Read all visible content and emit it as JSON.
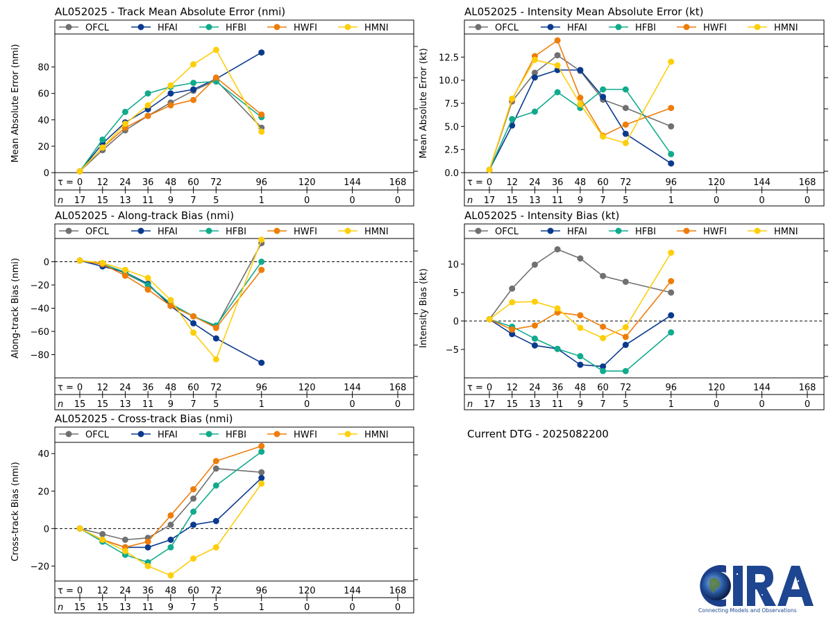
{
  "colors": {
    "OFCL": "#707070",
    "HFAI": "#0a3a8e",
    "HFBI": "#10ab8c",
    "HWFI": "#ee7d0a",
    "HMNI": "#fdce0c"
  },
  "tau_label": "τ =",
  "n_label": "n",
  "current_dtg": "Current DTG - 2025082200",
  "logo": {
    "letters": "CIRA",
    "tagline": "Connecting Models and Observations"
  },
  "chart_data": [
    {
      "id": "track-mae",
      "type": "line",
      "title": "AL052025 - Track Mean Absolute Error (nmi)",
      "ylabel": "Mean Absolute Error (nmi)",
      "ylim": [
        0,
        105
      ],
      "yticks": [
        0,
        20,
        40,
        60,
        80
      ],
      "ytick_labels": [
        "0",
        "20",
        "40",
        "60",
        "80"
      ],
      "zero_line": false,
      "x": [
        0,
        12,
        24,
        36,
        48,
        60,
        72,
        96,
        120,
        144,
        168
      ],
      "x_labels": [
        "0",
        "12",
        "24",
        "36",
        "48",
        "60",
        "72",
        "96",
        "120",
        "144",
        "168"
      ],
      "n": [
        "17",
        "15",
        "13",
        "11",
        "9",
        "7",
        "5",
        "1",
        "0",
        "0",
        "0"
      ],
      "series": [
        {
          "name": "OFCL",
          "values": [
            1,
            17,
            32,
            43,
            53,
            62,
            70,
            34,
            null,
            null,
            null
          ]
        },
        {
          "name": "HFAI",
          "values": [
            1,
            22,
            38,
            48,
            60,
            63,
            71,
            91,
            null,
            null,
            null
          ]
        },
        {
          "name": "HFBI",
          "values": [
            1,
            25,
            46,
            60,
            65,
            68,
            69,
            42,
            null,
            null,
            null
          ]
        },
        {
          "name": "HWFI",
          "values": [
            1,
            19,
            34,
            43,
            51,
            55,
            72,
            44,
            null,
            null,
            null
          ]
        },
        {
          "name": "HMNI",
          "values": [
            1,
            19,
            37,
            51,
            66,
            82,
            93,
            31,
            null,
            null,
            null
          ]
        }
      ]
    },
    {
      "id": "intensity-mae",
      "type": "line",
      "title": "AL052025 - Intensity Mean Absolute Error (kt)",
      "ylabel": "Mean Absolute Error (kt)",
      "ylim": [
        0,
        15
      ],
      "yticks": [
        0,
        2.5,
        5,
        7.5,
        10,
        12.5
      ],
      "ytick_labels": [
        "0.0",
        "2.5",
        "5.0",
        "7.5",
        "10.0",
        "12.5"
      ],
      "zero_line": false,
      "x": [
        0,
        12,
        24,
        36,
        48,
        60,
        72,
        96,
        120,
        144,
        168
      ],
      "x_labels": [
        "0",
        "12",
        "24",
        "36",
        "48",
        "60",
        "72",
        "96",
        "120",
        "144",
        "168"
      ],
      "n": [
        "17",
        "15",
        "13",
        "11",
        "9",
        "7",
        "5",
        "1",
        "0",
        "0",
        "0"
      ],
      "series": [
        {
          "name": "OFCL",
          "values": [
            0.3,
            7.7,
            10.8,
            12.7,
            11.0,
            7.9,
            7.0,
            5.0,
            null,
            null,
            null
          ]
        },
        {
          "name": "HFAI",
          "values": [
            0.3,
            5.1,
            10.3,
            11.1,
            11.1,
            8.2,
            4.2,
            1.0,
            null,
            null,
            null
          ]
        },
        {
          "name": "HFBI",
          "values": [
            0.3,
            5.8,
            6.6,
            8.7,
            7.0,
            9.0,
            9.0,
            2.0,
            null,
            null,
            null
          ]
        },
        {
          "name": "HWFI",
          "values": [
            0.3,
            7.9,
            12.6,
            14.3,
            8.1,
            4.0,
            5.2,
            7.0,
            null,
            null,
            null
          ]
        },
        {
          "name": "HMNI",
          "values": [
            0.3,
            8.0,
            12.2,
            11.6,
            7.4,
            3.9,
            3.2,
            12.0,
            null,
            null,
            null
          ]
        }
      ]
    },
    {
      "id": "along-track",
      "type": "line",
      "title": "AL052025 - Along-track Bias (nmi)",
      "ylabel": "Along-track Bias (nmi)",
      "ylim": [
        -100,
        20
      ],
      "yticks": [
        -80,
        -60,
        -40,
        -20,
        0
      ],
      "ytick_labels": [
        "−80",
        "−60",
        "−40",
        "−20",
        "0"
      ],
      "zero_line": true,
      "x": [
        0,
        12,
        24,
        36,
        48,
        60,
        72,
        96,
        120,
        144,
        168
      ],
      "x_labels": [
        "0",
        "12",
        "24",
        "36",
        "48",
        "60",
        "72",
        "96",
        "120",
        "144",
        "168"
      ],
      "n": [
        "15",
        "15",
        "13",
        "11",
        "9",
        "7",
        "5",
        "1",
        "0",
        "0",
        "0"
      ],
      "series": [
        {
          "name": "OFCL",
          "values": [
            1,
            -2,
            -10,
            -20,
            -37,
            -47,
            -56,
            16,
            null,
            null,
            null
          ]
        },
        {
          "name": "HFAI",
          "values": [
            1,
            -4,
            -9,
            -19,
            -38,
            -53,
            -66,
            -87,
            null,
            null,
            null
          ]
        },
        {
          "name": "HFBI",
          "values": [
            1,
            -2,
            -9,
            -20,
            -36,
            -47,
            -55,
            0,
            null,
            null,
            null
          ]
        },
        {
          "name": "HWFI",
          "values": [
            1,
            -2,
            -12,
            -24,
            -38,
            -47,
            -57,
            -7,
            null,
            null,
            null
          ]
        },
        {
          "name": "HMNI",
          "values": [
            1,
            -1,
            -7,
            -14,
            -33,
            -61,
            -84,
            19,
            null,
            null,
            null
          ]
        }
      ]
    },
    {
      "id": "intensity-bias",
      "type": "line",
      "title": "AL052025 - Intensity Bias (kt)",
      "ylabel": "Intensity Bias (kt)",
      "ylim": [
        -10,
        14.5
      ],
      "yticks": [
        -5,
        0,
        5,
        10
      ],
      "ytick_labels": [
        "−5",
        "0",
        "5",
        "10"
      ],
      "zero_line": true,
      "x": [
        0,
        12,
        24,
        36,
        48,
        60,
        72,
        96,
        120,
        144,
        168
      ],
      "x_labels": [
        "0",
        "12",
        "24",
        "36",
        "48",
        "60",
        "72",
        "96",
        "120",
        "144",
        "168"
      ],
      "n": [
        "17",
        "15",
        "13",
        "11",
        "9",
        "7",
        "5",
        "1",
        "0",
        "0",
        "0"
      ],
      "series": [
        {
          "name": "OFCL",
          "values": [
            0.3,
            5.7,
            9.9,
            12.6,
            11.0,
            7.9,
            6.9,
            5.0,
            null,
            null,
            null
          ]
        },
        {
          "name": "HFAI",
          "values": [
            0.3,
            -2.3,
            -4.3,
            -4.9,
            -7.7,
            -8.0,
            -4.2,
            1.0,
            null,
            null,
            null
          ]
        },
        {
          "name": "HFBI",
          "values": [
            0.3,
            -1.0,
            -3.1,
            -4.9,
            -6.2,
            -8.8,
            -8.8,
            -2.0,
            null,
            null,
            null
          ]
        },
        {
          "name": "HWFI",
          "values": [
            0.3,
            -1.5,
            -0.8,
            1.5,
            1.0,
            -1.0,
            -2.8,
            7.0,
            null,
            null,
            null
          ]
        },
        {
          "name": "HMNI",
          "values": [
            0.3,
            3.3,
            3.4,
            2.2,
            -1.2,
            -3.0,
            -1.1,
            12.0,
            null,
            null,
            null
          ]
        }
      ]
    },
    {
      "id": "cross-track",
      "type": "line",
      "title": "AL052025 - Cross-track Bias (nmi)",
      "ylabel": "Cross-track Bias (nmi)",
      "ylim": [
        -28,
        46
      ],
      "yticks": [
        -20,
        0,
        20,
        40
      ],
      "ytick_labels": [
        "−20",
        "0",
        "20",
        "40"
      ],
      "zero_line": true,
      "x": [
        0,
        12,
        24,
        36,
        48,
        60,
        72,
        96,
        120,
        144,
        168
      ],
      "x_labels": [
        "0",
        "12",
        "24",
        "36",
        "48",
        "60",
        "72",
        "96",
        "120",
        "144",
        "168"
      ],
      "n": [
        "15",
        "15",
        "13",
        "11",
        "9",
        "7",
        "5",
        "1",
        "0",
        "0",
        "0"
      ],
      "series": [
        {
          "name": "OFCL",
          "values": [
            0,
            -3,
            -6,
            -5,
            2,
            16,
            32,
            30,
            null,
            null,
            null
          ]
        },
        {
          "name": "HFAI",
          "values": [
            0,
            -6,
            -10,
            -10,
            -6,
            2,
            4,
            27,
            null,
            null,
            null
          ]
        },
        {
          "name": "HFBI",
          "values": [
            0,
            -7,
            -14,
            -18,
            -10,
            9,
            23,
            41,
            null,
            null,
            null
          ]
        },
        {
          "name": "HWFI",
          "values": [
            0,
            -6,
            -10,
            -7,
            7,
            21,
            36,
            44,
            null,
            null,
            null
          ]
        },
        {
          "name": "HMNI",
          "values": [
            0,
            -6,
            -12,
            -20,
            -25,
            -16,
            -10,
            24,
            null,
            null,
            null
          ]
        }
      ]
    }
  ]
}
